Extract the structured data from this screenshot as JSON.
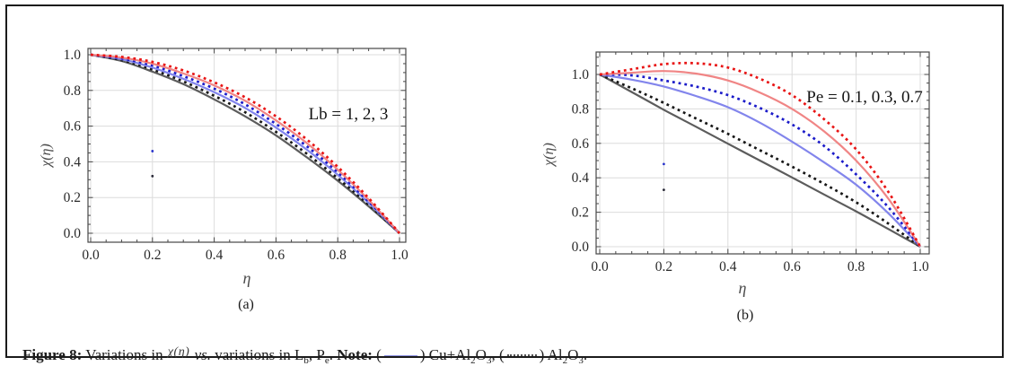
{
  "figure": {
    "caption_parts": [
      {
        "style": "bold",
        "text": "Figure 8:"
      },
      {
        "style": "normal",
        "text": " Variations in "
      },
      {
        "style": "formula",
        "text": "χ(η)"
      },
      {
        "style": "italic",
        "text": " vs."
      },
      {
        "style": "normal",
        "text": " variations in L"
      },
      {
        "style": "sub",
        "text": "b"
      },
      {
        "style": "normal",
        "text": ", P"
      },
      {
        "style": "sub",
        "text": "e"
      },
      {
        "style": "normal",
        "text": ". "
      },
      {
        "style": "bold",
        "text": "Note:"
      },
      {
        "style": "normal",
        "text": " ("
      },
      {
        "style": "solid_line",
        "text": "——"
      },
      {
        "style": "normal",
        "text": ") Cu+Al"
      },
      {
        "style": "sub",
        "text": "2"
      },
      {
        "style": "normal",
        "text": "O"
      },
      {
        "style": "sub",
        "text": "3"
      },
      {
        "style": "normal",
        "text": ", ("
      },
      {
        "style": "dashed_line",
        "text": "······"
      },
      {
        "style": "normal",
        "text": ") Al"
      },
      {
        "style": "sub",
        "text": "2"
      },
      {
        "style": "normal",
        "text": "O"
      },
      {
        "style": "sub",
        "text": "3"
      },
      {
        "style": "normal",
        "text": "."
      }
    ]
  },
  "colors": {
    "grid": "#dcdcdc",
    "frame": "#474747",
    "tick": "#474747",
    "tick_label": "#2a2a2a",
    "annotation": "#141414",
    "axis_label": "#4a4a4a",
    "caption_solid_line": "#8a8fe0",
    "caption_dashed_line": "#555555"
  },
  "chart_data": [
    {
      "id": "a",
      "type": "line",
      "panel_label": "(a)",
      "xlabel": "η",
      "ylabel": "χ(η)",
      "annotation": "Lb = 1, 2, 3",
      "legend_note": "solid = Cu+Al2O3, dotted = Al2O3",
      "x": [
        0,
        0.1,
        0.2,
        0.3,
        0.4,
        0.5,
        0.6,
        0.7,
        0.8,
        0.9,
        1.0
      ],
      "xticks": [
        0.0,
        0.2,
        0.4,
        0.6,
        0.8,
        1.0
      ],
      "yticks": [
        0.0,
        0.2,
        0.4,
        0.6,
        0.8,
        1.0
      ],
      "xlim": [
        -0.02,
        1.02
      ],
      "ylim": [
        -0.05,
        1.04
      ],
      "grid": true,
      "series": [
        {
          "name": "Cu+Al2O3 (Lb=1)",
          "color": "#5c5c5c",
          "dash": false,
          "values": [
            1,
            0.965,
            0.905,
            0.835,
            0.75,
            0.655,
            0.548,
            0.425,
            0.294,
            0.151,
            0
          ]
        },
        {
          "name": "Al2O3 (Lb=1)",
          "color": "#161616",
          "dash": true,
          "values": [
            1,
            0.97,
            0.917,
            0.85,
            0.77,
            0.678,
            0.568,
            0.445,
            0.308,
            0.16,
            0
          ]
        },
        {
          "name": "Cu+Al2O3 (Lb=2)",
          "color": "#8285ec",
          "dash": false,
          "values": [
            1,
            0.975,
            0.928,
            0.865,
            0.79,
            0.702,
            0.592,
            0.468,
            0.327,
            0.17,
            0
          ]
        },
        {
          "name": "Al2O3 (Lb=2)",
          "color": "#1b1bc9",
          "dash": true,
          "values": [
            1,
            0.979,
            0.94,
            0.88,
            0.81,
            0.722,
            0.612,
            0.487,
            0.341,
            0.178,
            0
          ]
        },
        {
          "name": "Cu+Al2O3 (Lb=3)",
          "color": "#f08585",
          "dash": false,
          "values": [
            1,
            0.984,
            0.95,
            0.895,
            0.828,
            0.742,
            0.632,
            0.505,
            0.356,
            0.187,
            0
          ]
        },
        {
          "name": "Al2O3 (Lb=3)",
          "color": "#e81414",
          "dash": true,
          "values": [
            1,
            0.988,
            0.96,
            0.912,
            0.845,
            0.762,
            0.655,
            0.525,
            0.372,
            0.197,
            0
          ]
        }
      ],
      "stray_points": [
        {
          "x": 0.2,
          "y": 0.46,
          "color": "#2a35cc"
        },
        {
          "x": 0.2,
          "y": 0.32,
          "color": "#2a2a38"
        }
      ]
    },
    {
      "id": "b",
      "type": "line",
      "panel_label": "(b)",
      "xlabel": "η",
      "ylabel": "χ(η)",
      "annotation": "Pe = 0.1, 0.3, 0.7",
      "legend_note": "solid = Cu+Al2O3, dotted = Al2O3",
      "x": [
        0,
        0.1,
        0.2,
        0.3,
        0.4,
        0.5,
        0.6,
        0.7,
        0.8,
        0.9,
        1.0
      ],
      "xticks": [
        0.0,
        0.2,
        0.4,
        0.6,
        0.8,
        1.0
      ],
      "yticks": [
        0.0,
        0.2,
        0.4,
        0.6,
        0.8,
        1.0
      ],
      "xlim": [
        -0.02,
        1.02
      ],
      "ylim": [
        -0.05,
        1.13
      ],
      "grid": true,
      "series": [
        {
          "name": "Cu+Al2O3 (Pe=0.1)",
          "color": "#5c5c5c",
          "dash": false,
          "values": [
            1,
            0.898,
            0.795,
            0.697,
            0.598,
            0.5,
            0.402,
            0.303,
            0.205,
            0.103,
            0
          ]
        },
        {
          "name": "Al2O3 (Pe=0.1)",
          "color": "#161616",
          "dash": true,
          "values": [
            1,
            0.92,
            0.835,
            0.745,
            0.655,
            0.56,
            0.465,
            0.365,
            0.258,
            0.135,
            0
          ]
        },
        {
          "name": "Cu+Al2O3 (Pe=0.3)",
          "color": "#8285ec",
          "dash": false,
          "values": [
            1,
            0.97,
            0.93,
            0.875,
            0.81,
            0.72,
            0.61,
            0.49,
            0.36,
            0.195,
            0
          ]
        },
        {
          "name": "Al2O3 (Pe=0.3)",
          "color": "#1b1bc9",
          "dash": true,
          "values": [
            1,
            0.995,
            0.965,
            0.93,
            0.88,
            0.805,
            0.71,
            0.585,
            0.42,
            0.23,
            0
          ]
        },
        {
          "name": "Cu+Al2O3 (Pe=0.7)",
          "color": "#f08585",
          "dash": false,
          "values": [
            1,
            1.01,
            1.02,
            1.005,
            0.965,
            0.895,
            0.8,
            0.67,
            0.5,
            0.28,
            0
          ]
        },
        {
          "name": "Al2O3 (Pe=0.7)",
          "color": "#e81414",
          "dash": true,
          "values": [
            1,
            1.03,
            1.06,
            1.065,
            1.04,
            0.975,
            0.88,
            0.74,
            0.565,
            0.32,
            0
          ]
        }
      ],
      "stray_points": [
        {
          "x": 0.2,
          "y": 0.48,
          "color": "#2a35cc"
        },
        {
          "x": 0.2,
          "y": 0.33,
          "color": "#2a2a38"
        }
      ]
    }
  ]
}
